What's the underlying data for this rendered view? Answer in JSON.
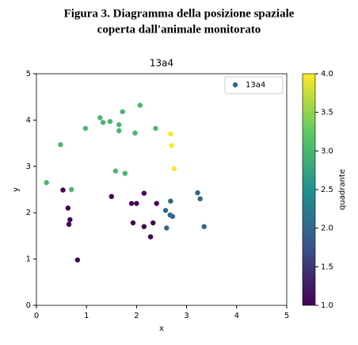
{
  "chart_data": {
    "type": "scatter",
    "caption": [
      "Figura 3. Diagramma della posizione spaziale",
      "coperta dall'animale monitorato"
    ],
    "title": "13a4",
    "x_label": "x",
    "y_label": "y",
    "xlim": [
      0,
      5
    ],
    "ylim": [
      0,
      5
    ],
    "xticks": [
      0,
      1,
      2,
      3,
      4,
      5
    ],
    "yticks": [
      0,
      1,
      2,
      3,
      4,
      5
    ],
    "legend": "upper right",
    "colormap": "viridis",
    "colorbar": {
      "label": "quadrante",
      "clim": [
        1,
        4
      ],
      "ticks": [
        {
          "value": 1,
          "label": "1.0"
        },
        {
          "value": 1.5,
          "label": "1.5"
        },
        {
          "value": 2,
          "label": "2.0"
        },
        {
          "value": 2.5,
          "label": "2.5"
        },
        {
          "value": 3,
          "label": "3.0"
        },
        {
          "value": 3.5,
          "label": "3.5"
        },
        {
          "value": 4,
          "label": "4.0"
        }
      ]
    },
    "series": [
      {
        "name": "13a4",
        "color": "#31688e",
        "x": [
          0.2,
          0.48,
          0.7,
          0.98,
          1.27,
          1.33,
          1.47,
          1.65,
          1.72,
          1.65,
          1.58,
          1.77,
          1.97,
          2.07,
          2.38,
          2.68,
          2.7,
          2.75,
          3.22,
          3.27,
          3.35,
          2.68,
          2.58,
          2.67,
          2.72,
          2.6,
          0.53,
          0.63,
          0.67,
          0.65,
          0.82,
          1.5,
          1.9,
          2.0,
          2.15,
          2.4,
          1.93,
          2.15,
          2.33,
          2.28
        ],
        "values": [
          2.65,
          3.47,
          2.5,
          3.82,
          4.05,
          3.95,
          3.97,
          3.9,
          4.18,
          3.77,
          2.9,
          2.85,
          3.72,
          4.32,
          3.82,
          3.7,
          3.45,
          2.95,
          2.43,
          2.3,
          1.7,
          2.25,
          2.05,
          1.95,
          1.92,
          1.67,
          2.49,
          2.1,
          1.85,
          1.75,
          0.98,
          2.35,
          2.2,
          2.2,
          2.42,
          2.2,
          1.78,
          1.7,
          1.78,
          1.48
        ],
        "c": [
          3,
          3,
          3,
          3,
          3,
          3,
          3,
          3,
          3,
          3,
          3,
          3,
          3,
          3,
          3,
          4,
          4,
          4,
          2,
          2,
          2,
          2,
          2,
          2,
          2,
          2,
          1,
          1,
          1,
          1,
          1,
          1,
          1,
          1,
          1,
          1,
          1,
          1,
          1,
          1
        ]
      }
    ]
  }
}
